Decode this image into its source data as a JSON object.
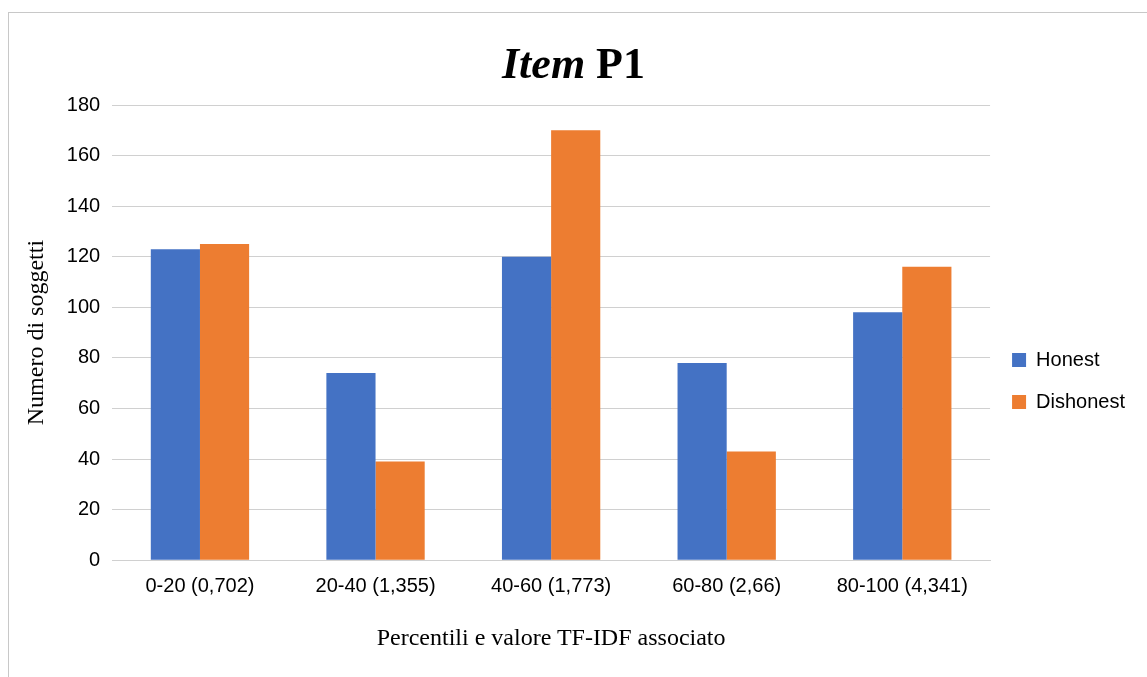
{
  "chart_data": {
    "type": "bar",
    "title": "Item P1",
    "xlabel": "Percentili e valore TF-IDF associato",
    "ylabel": "Numero di soggetti",
    "categories": [
      "0-20 (0,702)",
      "20-40 (1,355)",
      "40-60 (1,773)",
      "60-80 (2,66)",
      "80-100 (4,341)"
    ],
    "series": [
      {
        "name": "Honest",
        "color": "#4472c4",
        "values": [
          123,
          74,
          120,
          78,
          98
        ]
      },
      {
        "name": "Dishonest",
        "color": "#ed7d31",
        "values": [
          125,
          39,
          170,
          43,
          116
        ]
      }
    ],
    "ylim": [
      0,
      180
    ],
    "yticks": [
      0,
      20,
      40,
      60,
      80,
      100,
      120,
      140,
      160,
      180
    ],
    "grid": "y",
    "legend": "right"
  }
}
